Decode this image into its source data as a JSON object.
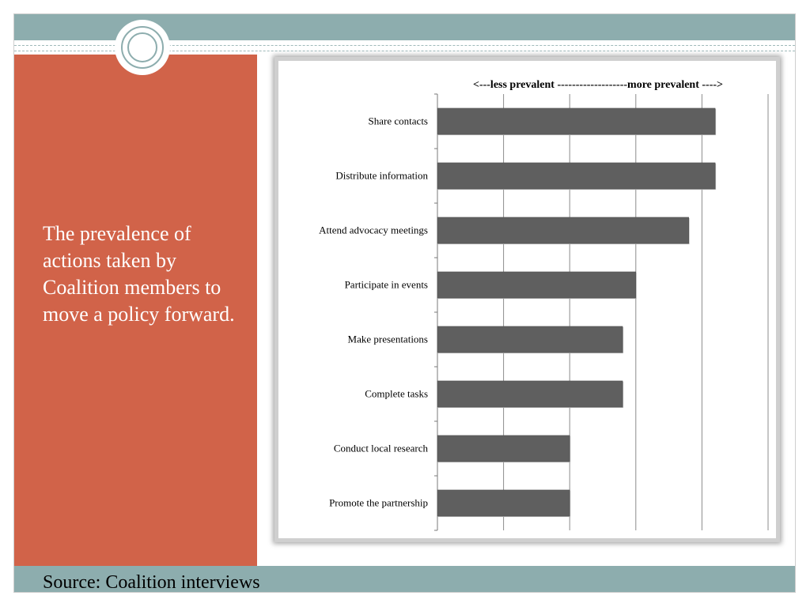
{
  "slide": {
    "title": "The prevalence of actions taken by Coalition members to move a policy forward.",
    "source": "Source: Coalition interviews",
    "colors": {
      "band": "#8dadae",
      "panel": "#d16349",
      "bar": "#5f5f5f"
    }
  },
  "chart_data": {
    "type": "bar",
    "orientation": "horizontal",
    "title": "<---less prevalent -------------------more prevalent ---->",
    "categories": [
      "Share contacts",
      "Distribute information",
      "Attend advocacy meetings",
      "Participate in events",
      "Make presentations",
      "Complete tasks",
      "Conduct local research",
      "Promote the partnership"
    ],
    "values": [
      4.2,
      4.2,
      3.8,
      3.0,
      2.8,
      2.8,
      2.0,
      2.0
    ],
    "xlim": [
      0,
      5
    ],
    "grid": true,
    "legend": "none",
    "bar_color": "#5f5f5f"
  }
}
